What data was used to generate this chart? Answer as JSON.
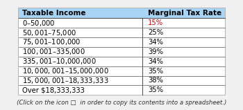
{
  "header": [
    "Taxable Income",
    "Marginal Tax Rate"
  ],
  "rows": [
    [
      "$0 – $50,000",
      "15%"
    ],
    [
      "$50,001 – $75,000",
      "25%"
    ],
    [
      "$75,001 – $100,000",
      "34%"
    ],
    [
      "$100,001 – $335,000",
      "39%"
    ],
    [
      "$335,001 – $10,000,000",
      "34%"
    ],
    [
      "$10,000,001 – $15,000,000",
      "35%"
    ],
    [
      "$15,000,001 – $18,333,333",
      "38%"
    ],
    [
      "Over $18,333,333",
      "35%"
    ]
  ],
  "footer": "(Click on the icon □  in order to copy its contents into a spreadsheet.)",
  "header_bg": "#a8d4f5",
  "header_text_color": "#000000",
  "rate_color_first": "#cc0000",
  "rate_color_rest": "#000000",
  "border_color": "#555555",
  "outer_border_color": "#aaaaaa",
  "font_size": 7.2,
  "header_font_size": 7.5,
  "footer_font_size": 6.2,
  "fig_bg": "#f0f0f0",
  "table_bg": "#ffffff"
}
